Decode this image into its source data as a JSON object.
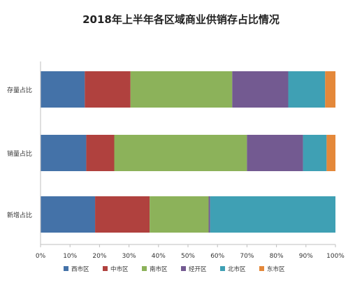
{
  "chart_data": {
    "type": "bar",
    "orientation": "horizontal",
    "stacked": true,
    "percent_stacked": true,
    "title": "2018年上半年各区域商业供销存占比情况",
    "categories": [
      "存量占比",
      "销量占比",
      "新增占比"
    ],
    "series": [
      {
        "name": "西市区",
        "color": "#4472a8",
        "values": [
          15,
          15.5,
          18.5
        ]
      },
      {
        "name": "中市区",
        "color": "#b0413e",
        "values": [
          15.5,
          9.5,
          18.5
        ]
      },
      {
        "name": "南市区",
        "color": "#8cb25a",
        "values": [
          34.5,
          45,
          20
        ]
      },
      {
        "name": "经开区",
        "color": "#735a91",
        "values": [
          19,
          19,
          0.5
        ]
      },
      {
        "name": "北市区",
        "color": "#3fa0b4",
        "values": [
          12.5,
          8,
          42.5
        ]
      },
      {
        "name": "东市区",
        "color": "#e4883a",
        "values": [
          3.5,
          3,
          0
        ]
      }
    ],
    "x_ticks": [
      "0%",
      "10%",
      "20%",
      "30%",
      "40%",
      "50%",
      "60%",
      "70%",
      "80%",
      "90%",
      "100%"
    ],
    "xlim": [
      0,
      100
    ],
    "grid": false,
    "legend_position": "bottom"
  }
}
